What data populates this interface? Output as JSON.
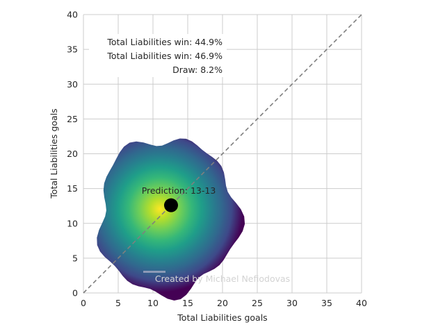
{
  "chart_data": {
    "type": "heatmap",
    "title": "",
    "xlabel": "Total Liabilities goals",
    "ylabel": "Total Liabilities goals",
    "xlim": [
      0,
      40
    ],
    "ylim": [
      0,
      40
    ],
    "xticks": [
      0,
      5,
      10,
      15,
      20,
      25,
      30,
      35,
      40
    ],
    "yticks": [
      0,
      5,
      10,
      15,
      20,
      25,
      30,
      35,
      40
    ],
    "grid": true,
    "colormap": "viridis",
    "density_center": [
      11.5,
      12
    ],
    "prediction_point": {
      "x": 12.6,
      "y": 12.6,
      "label": "Prediction: 13-13"
    },
    "diagonal": {
      "from": [
        0,
        0
      ],
      "to": [
        40,
        40
      ],
      "style": "dashed"
    },
    "outcome_box": {
      "lines": [
        "Total Liabilities win: 44.9%",
        "Total Liabilities win: 46.9%",
        "Draw: 8.2%"
      ],
      "placement": "top-left"
    },
    "watermark": "Created by Michael Nefiodovas"
  },
  "colors": {
    "grid": "#cccccc",
    "diagonal": "#7f7f7f",
    "point": "#000000",
    "watermark": "#d3d3d3",
    "viridis_high": "#fde725",
    "viridis_mid": "#21918c",
    "viridis_low": "#440154"
  }
}
